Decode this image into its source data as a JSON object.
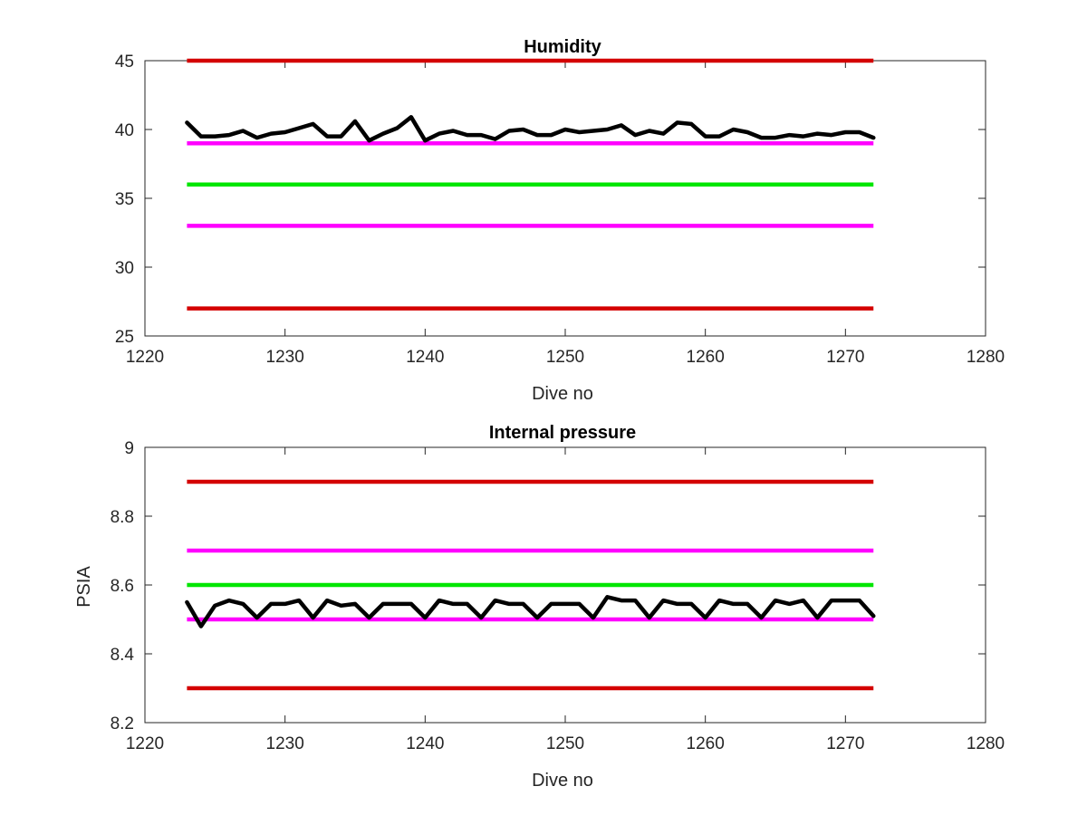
{
  "chart_data": [
    {
      "type": "line",
      "title": "Humidity",
      "xlabel": "Dive no",
      "ylabel": "",
      "xlim": [
        1220,
        1280
      ],
      "ylim": [
        25,
        45
      ],
      "xticks": [
        1220,
        1230,
        1240,
        1250,
        1260,
        1270,
        1280
      ],
      "yticks": [
        25,
        30,
        35,
        40,
        45
      ],
      "grid": false,
      "legend": "none",
      "reference_lines": [
        {
          "y": 45,
          "x": [
            1223,
            1272
          ],
          "color": "#d40000"
        },
        {
          "y": 39,
          "x": [
            1223,
            1272
          ],
          "color": "#ff00ff"
        },
        {
          "y": 36,
          "x": [
            1223,
            1272
          ],
          "color": "#00e600"
        },
        {
          "y": 33,
          "x": [
            1223,
            1272
          ],
          "color": "#ff00ff"
        },
        {
          "y": 27,
          "x": [
            1223,
            1272
          ],
          "color": "#d40000"
        }
      ],
      "series": [
        {
          "color": "#000000",
          "x": [
            1223,
            1224,
            1225,
            1226,
            1227,
            1228,
            1229,
            1230,
            1231,
            1232,
            1233,
            1234,
            1235,
            1236,
            1237,
            1238,
            1239,
            1240,
            1241,
            1242,
            1243,
            1244,
            1245,
            1246,
            1247,
            1248,
            1249,
            1250,
            1251,
            1252,
            1253,
            1254,
            1255,
            1256,
            1257,
            1258,
            1259,
            1260,
            1261,
            1262,
            1263,
            1264,
            1265,
            1266,
            1267,
            1268,
            1269,
            1270,
            1271,
            1272
          ],
          "y": [
            40.5,
            39.5,
            39.5,
            39.6,
            39.9,
            39.4,
            39.7,
            39.8,
            40.1,
            40.4,
            39.5,
            39.5,
            40.6,
            39.2,
            39.7,
            40.1,
            40.9,
            39.2,
            39.7,
            39.9,
            39.6,
            39.6,
            39.3,
            39.9,
            40.0,
            39.6,
            39.6,
            40.0,
            39.8,
            39.9,
            40.0,
            40.3,
            39.6,
            39.9,
            39.7,
            40.5,
            40.4,
            39.5,
            39.5,
            40.0,
            39.8,
            39.4,
            39.4,
            39.6,
            39.5,
            39.7,
            39.6,
            39.8,
            39.8,
            39.4
          ]
        }
      ]
    },
    {
      "type": "line",
      "title": "Internal pressure",
      "xlabel": "Dive no",
      "ylabel": "PSIA",
      "xlim": [
        1220,
        1280
      ],
      "ylim": [
        8.2,
        9
      ],
      "xticks": [
        1220,
        1230,
        1240,
        1250,
        1260,
        1270,
        1280
      ],
      "yticks": [
        8.2,
        8.4,
        8.6,
        8.8,
        9
      ],
      "grid": false,
      "legend": "none",
      "reference_lines": [
        {
          "y": 8.9,
          "x": [
            1223,
            1272
          ],
          "color": "#d40000"
        },
        {
          "y": 8.7,
          "x": [
            1223,
            1272
          ],
          "color": "#ff00ff"
        },
        {
          "y": 8.6,
          "x": [
            1223,
            1272
          ],
          "color": "#00e600"
        },
        {
          "y": 8.5,
          "x": [
            1223,
            1272
          ],
          "color": "#ff00ff"
        },
        {
          "y": 8.3,
          "x": [
            1223,
            1272
          ],
          "color": "#d40000"
        }
      ],
      "series": [
        {
          "color": "#000000",
          "x": [
            1223,
            1224,
            1225,
            1226,
            1227,
            1228,
            1229,
            1230,
            1231,
            1232,
            1233,
            1234,
            1235,
            1236,
            1237,
            1238,
            1239,
            1240,
            1241,
            1242,
            1243,
            1244,
            1245,
            1246,
            1247,
            1248,
            1249,
            1250,
            1251,
            1252,
            1253,
            1254,
            1255,
            1256,
            1257,
            1258,
            1259,
            1260,
            1261,
            1262,
            1263,
            1264,
            1265,
            1266,
            1267,
            1268,
            1269,
            1270,
            1271,
            1272
          ],
          "y": [
            8.55,
            8.48,
            8.54,
            8.555,
            8.545,
            8.505,
            8.545,
            8.545,
            8.555,
            8.505,
            8.555,
            8.54,
            8.545,
            8.505,
            8.545,
            8.545,
            8.545,
            8.505,
            8.555,
            8.545,
            8.545,
            8.505,
            8.555,
            8.545,
            8.545,
            8.505,
            8.545,
            8.545,
            8.545,
            8.505,
            8.565,
            8.555,
            8.555,
            8.505,
            8.555,
            8.545,
            8.545,
            8.505,
            8.555,
            8.545,
            8.545,
            8.505,
            8.555,
            8.545,
            8.555,
            8.505,
            8.555,
            8.555,
            8.555,
            8.51
          ]
        }
      ]
    }
  ]
}
